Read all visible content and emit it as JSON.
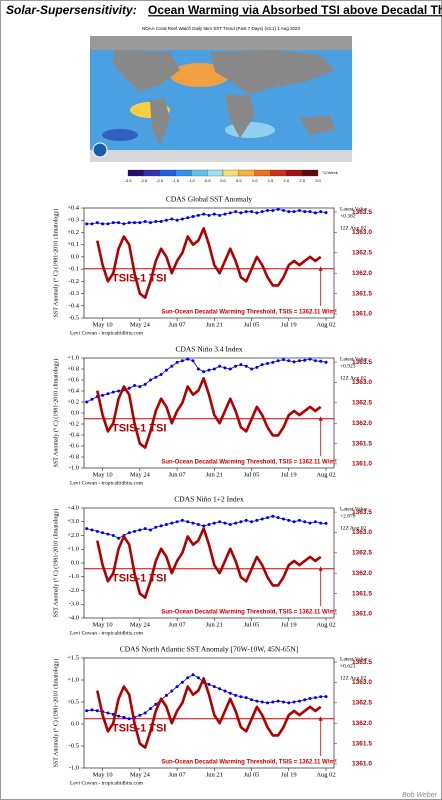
{
  "title_prefix": "Solar-Supersensitivity:",
  "title": "Ocean Warming via Absorbed TSI above Decadal Threshold",
  "map": {
    "caption": "NOAA Coral Reef Watch Daily 5km SST Trend (Past 7 Days) (v3.1)  1 Aug 2023",
    "scale_labels": [
      "-3.0",
      "-2.5",
      "-2.0",
      "-1.5",
      "-1.0",
      "-0.5",
      "0.0",
      "0.5",
      "1.0",
      "1.5",
      "2.0",
      "2.5",
      "3.0"
    ],
    "unit": "°C/Week"
  },
  "footer": "Bob Weber",
  "chart_data": [
    {
      "type": "line",
      "title": "CDAS Global SST Anomaly",
      "ylabel": "SST Anomaly (° C) (1981-2010 climatology)",
      "credit": "Levi Cowan - tropicaltidbits.com",
      "latest_label": "Latest Value:",
      "latest_value": "+0.362",
      "latest_time": "12Z Aug 02",
      "annotation": "TSIS-1 TSI",
      "threshold": {
        "value": 1362.11,
        "label": "Sun-Ocean Decadal Warming Threshold, TSIS = 1362.11 W/m²"
      },
      "categories": [
        null,
        null,
        null,
        "May 10",
        null,
        null,
        null,
        null,
        null,
        null,
        "May 24",
        null,
        null,
        null,
        null,
        null,
        null,
        "Jun 07",
        null,
        null,
        null,
        null,
        null,
        null,
        "Jun 21",
        null,
        null,
        null,
        null,
        null,
        null,
        "Jul 05",
        null,
        null,
        null,
        null,
        null,
        null,
        "Jul 19",
        null,
        null,
        null,
        null,
        null,
        null,
        "Aug 02",
        null
      ],
      "ylim": [
        -0.5,
        0.4
      ],
      "yticks": [
        {
          "value": 0.4,
          "label": "+0.4"
        },
        {
          "value": 0.3,
          "label": "+0.3"
        },
        {
          "value": 0.2,
          "label": "+0.2"
        },
        {
          "value": 0.1,
          "label": "+0.1"
        },
        {
          "value": 0,
          "label": "0.0"
        },
        -0.1,
        -0.2,
        -0.3,
        -0.4,
        -0.5
      ],
      "y2lim": [
        1360.9,
        1363.6
      ],
      "y2ticks": [
        1363.5,
        {
          "value": 1363,
          "label": "1363.0"
        },
        1362.5,
        {
          "value": 1362,
          "label": "1362.0"
        },
        1361.5,
        {
          "value": 1361,
          "label": "1361.0"
        }
      ],
      "grid": false,
      "series": [
        {
          "name": "SST Anomaly",
          "color": "#0000ee",
          "values": [
            0.27,
            0.27,
            0.28,
            0.27,
            0.27,
            0.28,
            0.28,
            0.27,
            0.28,
            0.28,
            0.28,
            0.29,
            0.28,
            0.29,
            0.29,
            0.3,
            0.31,
            0.3,
            0.31,
            0.32,
            0.33,
            0.34,
            0.35,
            0.34,
            0.35,
            0.34,
            0.35,
            0.36,
            0.37,
            0.36,
            0.37,
            0.37,
            0.36,
            0.37,
            0.38,
            0.38,
            0.39,
            0.38,
            0.37,
            0.37,
            0.38,
            0.37,
            0.37,
            0.36,
            0.37,
            0.362,
            null
          ]
        },
        {
          "name": "TSIS-1 TSI",
          "color": "#b00000",
          "axis": "y2",
          "values": [
            null,
            null,
            1362.8,
            1362.2,
            1361.8,
            1362.0,
            1362.6,
            1362.9,
            1362.7,
            1362.0,
            1361.5,
            1361.4,
            1361.8,
            1362.3,
            1362.6,
            1362.4,
            1362.0,
            1362.3,
            1362.5,
            1362.9,
            1362.7,
            1362.8,
            1363.1,
            1362.7,
            1362.2,
            1362.0,
            1362.3,
            1362.6,
            1362.3,
            1361.9,
            1361.8,
            1362.1,
            1362.4,
            1362.2,
            1361.9,
            1361.7,
            1361.7,
            1361.9,
            1362.2,
            1362.3,
            1362.2,
            1362.3,
            1362.4,
            1362.3,
            1362.4,
            null,
            null
          ]
        }
      ]
    },
    {
      "type": "line",
      "title": "CDAS Niño 3.4 Index",
      "ylabel": "SST Anomaly (° C) (1981-2010 climatology)",
      "credit": "Levi Cowan - tropicaltidbits.com",
      "latest_label": "Latest Value:",
      "latest_value": "+0.923",
      "latest_time": "12Z Aug 02",
      "annotation": "TSIS-1 TSI",
      "threshold": {
        "value": 1362.11,
        "label": "Sun-Ocean Decadal Warming Threshold, TSIS = 1362.11 W/m²"
      },
      "categories": [
        null,
        null,
        null,
        "May 10",
        null,
        null,
        null,
        null,
        null,
        null,
        "May 24",
        null,
        null,
        null,
        null,
        null,
        null,
        "Jun 07",
        null,
        null,
        null,
        null,
        null,
        null,
        "Jun 21",
        null,
        null,
        null,
        null,
        null,
        null,
        "Jul 05",
        null,
        null,
        null,
        null,
        null,
        null,
        "Jul 19",
        null,
        null,
        null,
        null,
        null,
        null,
        "Aug 02",
        null
      ],
      "ylim": [
        -1.0,
        1.0
      ],
      "yticks": [
        {
          "value": 1.0,
          "label": "+1.0"
        },
        {
          "value": 0.8,
          "label": "+0.8"
        },
        {
          "value": 0.6,
          "label": "+0.6"
        },
        {
          "value": 0.4,
          "label": "+0.4"
        },
        {
          "value": 0.2,
          "label": "+0.2"
        },
        {
          "value": 0,
          "label": "0.0"
        },
        -0.2,
        -0.4,
        -0.6,
        -0.8,
        {
          "value": -1.0,
          "label": "-1.0"
        }
      ],
      "y2lim": [
        1360.9,
        1363.6
      ],
      "y2ticks": [
        1363.5,
        {
          "value": 1363,
          "label": "1363.0"
        },
        1362.5,
        {
          "value": 1362,
          "label": "1362.0"
        },
        1361.5,
        {
          "value": 1361,
          "label": "1361.0"
        }
      ],
      "grid": false,
      "series": [
        {
          "name": "SST Anomaly",
          "color": "#0000ee",
          "values": [
            0.2,
            0.25,
            0.3,
            0.32,
            0.35,
            0.38,
            0.4,
            0.42,
            0.45,
            0.5,
            0.48,
            0.52,
            0.6,
            0.65,
            0.7,
            0.78,
            0.85,
            0.92,
            0.95,
            0.98,
            0.95,
            0.8,
            0.75,
            0.78,
            0.8,
            0.85,
            0.82,
            0.8,
            0.85,
            0.88,
            0.85,
            0.8,
            0.83,
            0.88,
            0.9,
            0.92,
            0.95,
            0.97,
            0.95,
            0.93,
            0.95,
            0.96,
            0.98,
            0.95,
            0.94,
            0.923,
            null
          ]
        },
        {
          "name": "TSIS-1 TSI",
          "color": "#b00000",
          "axis": "y2",
          "values": [
            null,
            null,
            1362.8,
            1362.2,
            1361.8,
            1362.0,
            1362.6,
            1362.9,
            1362.7,
            1362.0,
            1361.5,
            1361.4,
            1361.8,
            1362.3,
            1362.6,
            1362.4,
            1362.0,
            1362.3,
            1362.5,
            1362.9,
            1362.7,
            1362.8,
            1363.1,
            1362.7,
            1362.2,
            1362.0,
            1362.3,
            1362.6,
            1362.3,
            1361.9,
            1361.8,
            1362.1,
            1362.4,
            1362.2,
            1361.9,
            1361.7,
            1361.7,
            1361.9,
            1362.2,
            1362.3,
            1362.2,
            1362.3,
            1362.4,
            1362.3,
            1362.4,
            null,
            null
          ]
        }
      ]
    },
    {
      "type": "line",
      "title": "CDAS Niño 1+2 Index",
      "ylabel": "SST Anomaly (° C) (1981-2010 climatology)",
      "credit": "Levi Cowan - tropicaltidbits.com",
      "latest_label": "Latest Value:",
      "latest_value": "+2.878",
      "latest_time": "12Z Aug 02",
      "annotation": "TSIS-1 TSI",
      "threshold": {
        "value": 1362.11,
        "label": "Sun-Ocean Decadal Warming Threshold, TSIS = 1362.11 W/m²"
      },
      "categories": [
        null,
        null,
        null,
        "May 10",
        null,
        null,
        null,
        null,
        null,
        null,
        "May 24",
        null,
        null,
        null,
        null,
        null,
        null,
        "Jun 07",
        null,
        null,
        null,
        null,
        null,
        null,
        "Jun 21",
        null,
        null,
        null,
        null,
        null,
        null,
        "Jul 05",
        null,
        null,
        null,
        null,
        null,
        null,
        "Jul 19",
        null,
        null,
        null,
        null,
        null,
        null,
        "Aug 02",
        null
      ],
      "ylim": [
        -4.0,
        4.0
      ],
      "yticks": [
        {
          "value": 4,
          "label": "+4.0"
        },
        {
          "value": 3,
          "label": "+3.0"
        },
        {
          "value": 2,
          "label": "+2.0"
        },
        {
          "value": 1,
          "label": "+1.0"
        },
        {
          "value": 0,
          "label": "0.0"
        },
        {
          "value": -1,
          "label": "-1.0"
        },
        {
          "value": -2,
          "label": "-2.0"
        },
        {
          "value": -3,
          "label": "-3.0"
        },
        {
          "value": -4,
          "label": "-4.0"
        }
      ],
      "y2lim": [
        1360.9,
        1363.6
      ],
      "y2ticks": [
        1363.5,
        {
          "value": 1363,
          "label": "1363.0"
        },
        1362.5,
        {
          "value": 1362,
          "label": "1362.0"
        },
        1361.5,
        {
          "value": 1361,
          "label": "1361.0"
        }
      ],
      "grid": false,
      "series": [
        {
          "name": "SST Anomaly",
          "color": "#0000ee",
          "values": [
            2.5,
            2.4,
            2.3,
            2.2,
            2.1,
            2.0,
            1.8,
            2.0,
            2.2,
            2.3,
            2.4,
            2.5,
            2.4,
            2.6,
            2.7,
            2.8,
            2.9,
            3.0,
            3.1,
            3.0,
            2.9,
            2.8,
            2.7,
            2.8,
            2.9,
            3.0,
            2.9,
            2.8,
            2.9,
            3.0,
            3.1,
            3.0,
            3.1,
            3.2,
            3.3,
            3.4,
            3.3,
            3.2,
            3.1,
            3.0,
            3.1,
            3.0,
            2.9,
            3.0,
            2.9,
            2.878,
            null
          ]
        },
        {
          "name": "TSIS-1 TSI",
          "color": "#b00000",
          "axis": "y2",
          "values": [
            null,
            null,
            1362.8,
            1362.2,
            1361.8,
            1362.0,
            1362.6,
            1362.9,
            1362.7,
            1362.0,
            1361.5,
            1361.4,
            1361.8,
            1362.3,
            1362.6,
            1362.4,
            1362.0,
            1362.3,
            1362.5,
            1362.9,
            1362.7,
            1362.8,
            1363.1,
            1362.7,
            1362.2,
            1362.0,
            1362.3,
            1362.6,
            1362.3,
            1361.9,
            1361.8,
            1362.1,
            1362.4,
            1362.2,
            1361.9,
            1361.7,
            1361.7,
            1361.9,
            1362.2,
            1362.3,
            1362.2,
            1362.3,
            1362.4,
            1362.3,
            1362.4,
            null,
            null
          ]
        }
      ]
    },
    {
      "type": "line",
      "title": "CDAS North Atlantic SST Anomaly [70W-10W, 45N-65N]",
      "ylabel": "SST Anomaly (° C) (1981-2010 climatology)",
      "credit": "Levi Cowan - tropicaltidbits.com",
      "latest_label": "Latest Value:",
      "latest_value": "+0.621",
      "latest_time": "12Z Aug 02",
      "annotation": "TSIS-1 TSI",
      "threshold": {
        "value": 1362.11,
        "label": "Sun-Ocean Decadal Warming Threshold, TSIS = 1362.11 W/m²"
      },
      "categories": [
        null,
        null,
        null,
        "May 10",
        null,
        null,
        null,
        null,
        null,
        null,
        "May 24",
        null,
        null,
        null,
        null,
        null,
        null,
        "Jun 07",
        null,
        null,
        null,
        null,
        null,
        null,
        "Jun 21",
        null,
        null,
        null,
        null,
        null,
        null,
        "Jul 05",
        null,
        null,
        null,
        null,
        null,
        null,
        "Jul 19",
        null,
        null,
        null,
        null,
        null,
        null,
        "Aug 02",
        null
      ],
      "ylim": [
        -1.0,
        1.5
      ],
      "yticks": [
        {
          "value": 1.5,
          "label": "+1.5"
        },
        {
          "value": 1.0,
          "label": "+1.0"
        },
        {
          "value": 0.5,
          "label": "+0.5"
        },
        {
          "value": 0,
          "label": "0.0"
        },
        -0.5,
        {
          "value": -1.0,
          "label": "-1.0"
        }
      ],
      "y2lim": [
        1360.9,
        1363.6
      ],
      "y2ticks": [
        1363.5,
        {
          "value": 1363,
          "label": "1363.0"
        },
        1362.5,
        {
          "value": 1362,
          "label": "1362.0"
        },
        1361.5,
        {
          "value": 1361,
          "label": "1361.0"
        }
      ],
      "grid": false,
      "series": [
        {
          "name": "SST Anomaly",
          "color": "#0000ee",
          "values": [
            0.3,
            0.32,
            0.3,
            0.28,
            0.25,
            0.22,
            0.18,
            0.15,
            0.12,
            0.15,
            0.2,
            0.25,
            0.35,
            0.45,
            0.55,
            0.65,
            0.75,
            0.85,
            0.95,
            1.05,
            1.12,
            1.05,
            0.95,
            0.9,
            0.85,
            0.8,
            0.75,
            0.7,
            0.65,
            0.62,
            0.6,
            0.55,
            0.52,
            0.5,
            0.48,
            0.5,
            0.52,
            0.5,
            0.48,
            0.5,
            0.52,
            0.55,
            0.58,
            0.6,
            0.62,
            0.621,
            null
          ]
        },
        {
          "name": "TSIS-1 TSI",
          "color": "#b00000",
          "axis": "y2",
          "values": [
            null,
            null,
            1362.8,
            1362.2,
            1361.8,
            1362.0,
            1362.6,
            1362.9,
            1362.7,
            1362.0,
            1361.5,
            1361.4,
            1361.8,
            1362.3,
            1362.6,
            1362.4,
            1362.0,
            1362.3,
            1362.5,
            1362.9,
            1362.7,
            1362.8,
            1363.1,
            1362.7,
            1362.2,
            1362.0,
            1362.3,
            1362.6,
            1362.3,
            1361.9,
            1361.8,
            1362.1,
            1362.4,
            1362.2,
            1361.9,
            1361.7,
            1361.7,
            1361.9,
            1362.2,
            1362.3,
            1362.2,
            1362.3,
            1362.4,
            1362.3,
            1362.4,
            null,
            null
          ]
        }
      ]
    }
  ]
}
